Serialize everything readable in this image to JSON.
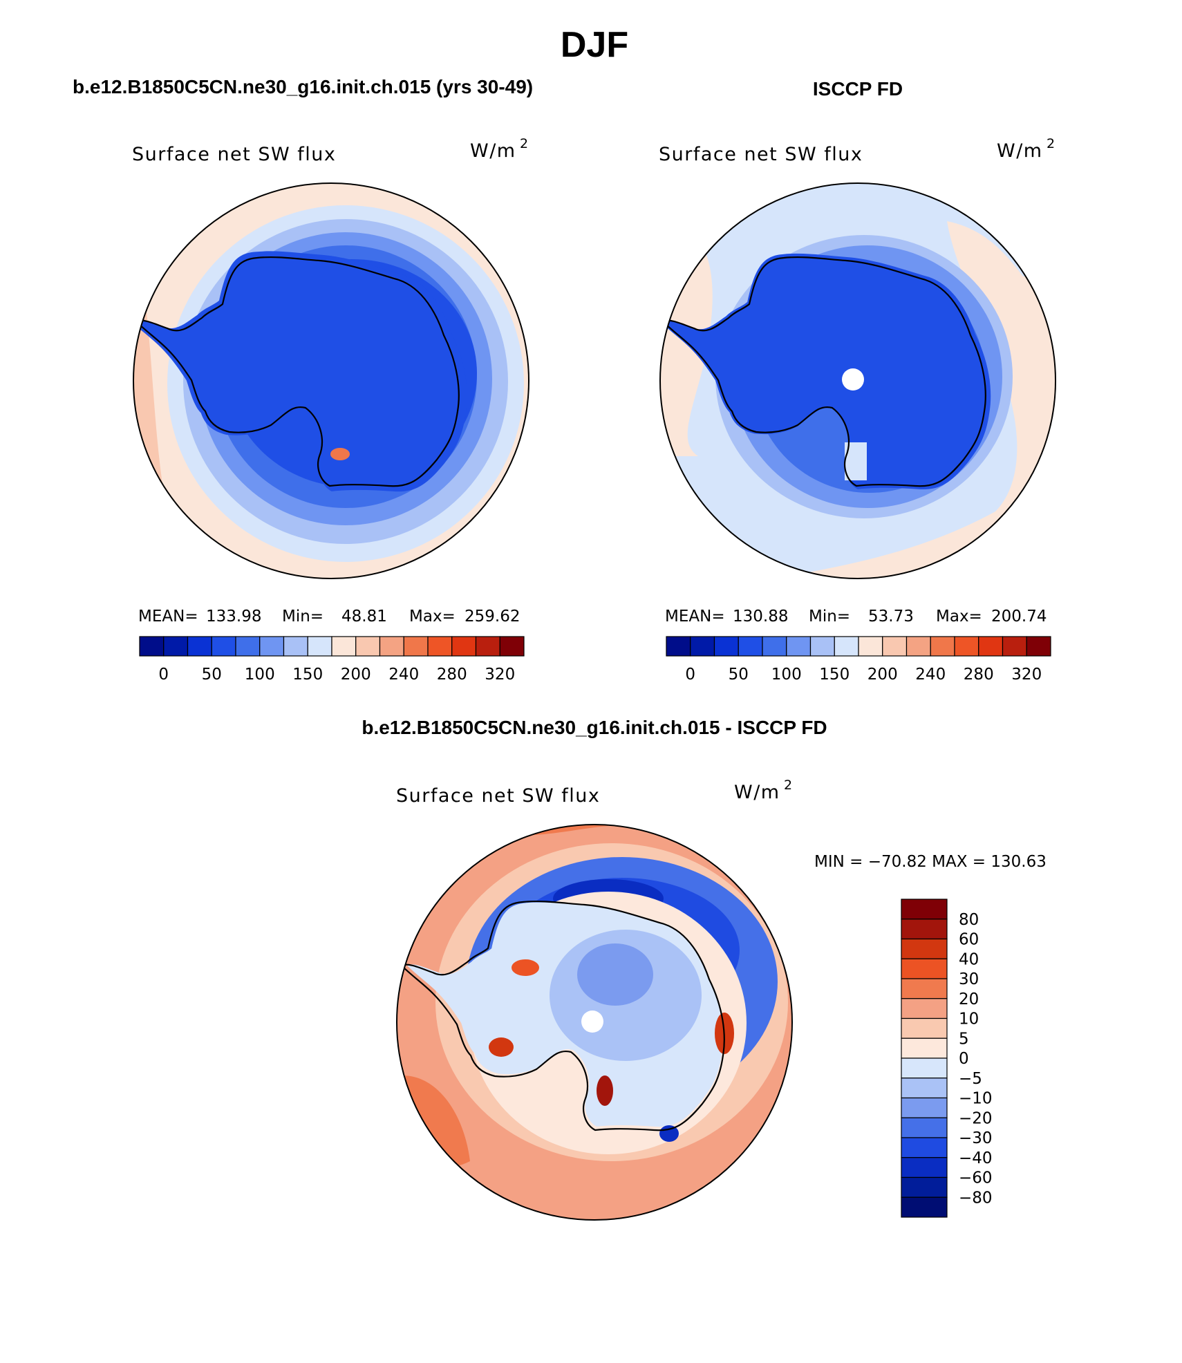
{
  "page": {
    "season": "DJF",
    "units_main": "W/m",
    "units_exp": "2"
  },
  "panels": [
    {
      "header": "b.e12.B1850C5CN.ne30_g16.init.ch.015 (yrs 30-49)",
      "var_label": "Surface net SW flux",
      "stats": {
        "mean_label": "MEAN=",
        "mean": "133.98",
        "min_label": "Min=",
        "min": "48.81",
        "max_label": "Max=",
        "max": "259.62"
      }
    },
    {
      "header": "ISCCP FD",
      "var_label": "Surface net SW flux",
      "stats": {
        "mean_label": "MEAN=",
        "mean": "130.88",
        "min_label": "Min=",
        "min": "53.73",
        "max_label": "Max=",
        "max": "200.74"
      }
    },
    {
      "header": "b.e12.B1850C5CN.ne30_g16.init.ch.015 - ISCCP FD",
      "var_label": "Surface net SW flux",
      "minmax": "MIN = −70.82 MAX = 130.63"
    }
  ],
  "chart_data": [
    {
      "type": "heatmap",
      "projection": "south-polar-stereographic",
      "title": "b.e12.B1850C5CN.ne30_g16.init.ch.015 (yrs 30-49)",
      "variable": "Surface net SW flux",
      "units": "W/m2",
      "mean": 133.98,
      "min": 48.81,
      "max": 259.62,
      "colorbar_levels": [
        0,
        25,
        50,
        75,
        100,
        125,
        150,
        175,
        200,
        220,
        240,
        260,
        280,
        300,
        320
      ],
      "colorbar_tick_labels": [
        "0",
        "50",
        "100",
        "150",
        "200",
        "240",
        "280",
        "320"
      ],
      "colorbar_colors": [
        "#000d8a",
        "#001aa8",
        "#0a32d4",
        "#1f4fe6",
        "#3f6fea",
        "#6f95f2",
        "#a9c1f6",
        "#d6e5fb",
        "#fbe6d9",
        "#f9c8b0",
        "#f4a383",
        "#f0774a",
        "#ee5526",
        "#e03612",
        "#b91f0e",
        "#7f0006"
      ],
      "legend_position": "bottom"
    },
    {
      "type": "heatmap",
      "projection": "south-polar-stereographic",
      "title": "ISCCP FD",
      "variable": "Surface net SW flux",
      "units": "W/m2",
      "mean": 130.88,
      "min": 53.73,
      "max": 200.74,
      "colorbar_levels": [
        0,
        25,
        50,
        75,
        100,
        125,
        150,
        175,
        200,
        220,
        240,
        260,
        280,
        300,
        320
      ],
      "colorbar_tick_labels": [
        "0",
        "50",
        "100",
        "150",
        "200",
        "240",
        "280",
        "320"
      ],
      "colorbar_colors": [
        "#000d8a",
        "#001aa8",
        "#0a32d4",
        "#1f4fe6",
        "#3f6fea",
        "#6f95f2",
        "#a9c1f6",
        "#d6e5fb",
        "#fbe6d9",
        "#f9c8b0",
        "#f4a383",
        "#f0774a",
        "#ee5526",
        "#e03612",
        "#b91f0e",
        "#7f0006"
      ],
      "legend_position": "bottom"
    },
    {
      "type": "heatmap",
      "projection": "south-polar-stereographic",
      "title": "b.e12.B1850C5CN.ne30_g16.init.ch.015 - ISCCP FD",
      "variable": "Surface net SW flux",
      "units": "W/m2",
      "min": -70.82,
      "max": 130.63,
      "colorbar_levels": [
        "80",
        "60",
        "40",
        "30",
        "20",
        "10",
        "5",
        "0",
        "−5",
        "−10",
        "−20",
        "−30",
        "−40",
        "−60",
        "−80"
      ],
      "colorbar_colors": [
        "#7f0006",
        "#a2150c",
        "#d23710",
        "#ec5324",
        "#f07a4e",
        "#f4a184",
        "#f9c9b0",
        "#fde8dc",
        "#d7e6fb",
        "#aac2f6",
        "#7b9bef",
        "#4570e8",
        "#1f4be1",
        "#0a2dc2",
        "#011d9a",
        "#000d73"
      ],
      "legend_position": "right"
    }
  ]
}
